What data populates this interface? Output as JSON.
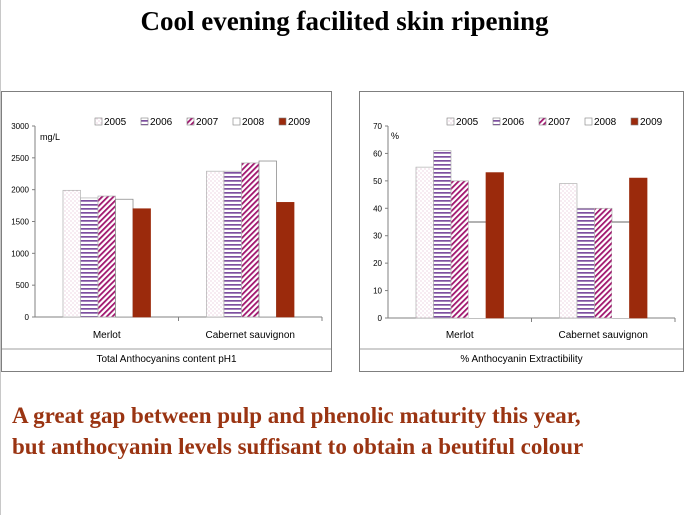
{
  "slide": {
    "title": "Cool evening facilited skin ripening",
    "conclusion_line1": "A great gap between pulp and phenolic maturity this year,",
    "conclusion_line2": "but anthocyanin levels suffisant to obtain a beutiful colour",
    "conclusion_color": "#9a3412"
  },
  "legend_styles": {
    "2005": {
      "style": "dots",
      "color": "#d8a0c0"
    },
    "2006": {
      "style": "hstripes",
      "color": "#7d4fa0"
    },
    "2007": {
      "style": "diagonal",
      "color": "#a0156e"
    },
    "2008": {
      "style": "solid",
      "color": "#6b1a6b"
    },
    "2009": {
      "style": "solid",
      "color": "#9b2a0c"
    }
  },
  "chart_data": [
    {
      "id": "anthocyanins",
      "type": "bar",
      "title": "Total Anthocyanins content pH1",
      "ylabel": "mg/L",
      "ylim": [
        0,
        3000
      ],
      "yticks": [
        "0",
        "500",
        "1000",
        "1500",
        "2000",
        "2500",
        "3000"
      ],
      "categories": [
        "Merlot",
        "Cabernet sauvignon"
      ],
      "series": [
        {
          "name": "2005",
          "values": [
            1990,
            2290
          ]
        },
        {
          "name": "2006",
          "values": [
            1870,
            2290
          ]
        },
        {
          "name": "2007",
          "values": [
            1900,
            2420
          ]
        },
        {
          "name": "2008",
          "values": [
            1850,
            2450
          ]
        },
        {
          "name": "2009",
          "values": [
            1700,
            1800
          ]
        }
      ],
      "legend_position": "top-right"
    },
    {
      "id": "extractibility",
      "type": "bar",
      "title": "% Anthocyanin Extractibility",
      "ylabel": "%",
      "ylim": [
        0,
        70
      ],
      "yticks": [
        "0",
        "10",
        "20",
        "30",
        "40",
        "50",
        "60",
        "70"
      ],
      "categories": [
        "Merlot",
        "Cabernet sauvignon"
      ],
      "series": [
        {
          "name": "2005",
          "values": [
            55,
            49
          ]
        },
        {
          "name": "2006",
          "values": [
            61,
            40
          ]
        },
        {
          "name": "2007",
          "values": [
            50,
            40
          ]
        },
        {
          "name": "2008",
          "values": [
            35,
            35
          ]
        },
        {
          "name": "2009",
          "values": [
            53,
            51
          ]
        }
      ],
      "legend_position": "top-right"
    }
  ]
}
